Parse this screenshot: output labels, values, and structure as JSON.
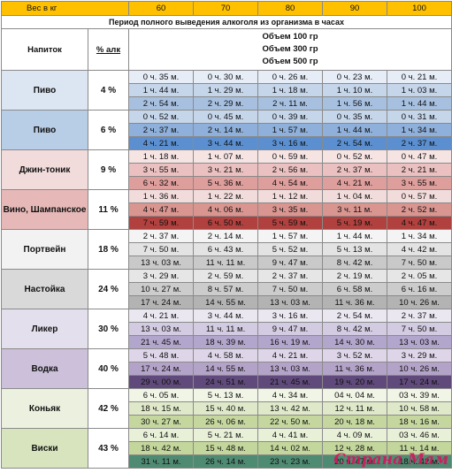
{
  "header": {
    "weight_label": "Вес в кг",
    "weights": [
      "60",
      "70",
      "80",
      "90",
      "100"
    ],
    "period_title": "Период полного выведения алкоголя из организма в часах",
    "drink_col": "Напиток",
    "pct_col": "% алк",
    "volumes": [
      "Объем 100 гр",
      "Объем 300 гр",
      "Объем 500 гр"
    ]
  },
  "drinks": [
    {
      "name": "Пиво",
      "pct": "4 %",
      "bg": "#dce6f2",
      "rows": [
        [
          "0 ч. 35 м.",
          "0 ч. 30 м.",
          "0 ч. 26 м.",
          "0 ч. 23 м.",
          "0 ч. 21 м."
        ],
        [
          "1 ч. 44 м.",
          "1 ч. 29 м.",
          "1 ч. 18 м.",
          "1 ч. 10 м.",
          "1 ч. 03 м."
        ],
        [
          "2 ч. 54 м.",
          "2 ч. 29 м.",
          "2 ч. 11 м.",
          "1 ч. 56 м.",
          "1 ч. 44 м."
        ]
      ],
      "rowbg": [
        "#e6edf7",
        "#c5d5ea",
        "#a7c0e0"
      ]
    },
    {
      "name": "Пиво",
      "pct": "6 %",
      "bg": "#b8cde6",
      "rows": [
        [
          "0 ч. 52 м.",
          "0 ч. 45 м.",
          "0 ч. 39 м.",
          "0 ч. 35 м.",
          "0 ч. 31 м."
        ],
        [
          "2 ч. 37 м.",
          "2 ч. 14 м.",
          "1 ч. 57 м.",
          "1 ч. 44 м.",
          "1 ч. 34 м."
        ],
        [
          "4 ч. 21 м.",
          "3 ч. 44 м.",
          "3 ч. 16 м.",
          "2 ч. 54 м.",
          "2 ч. 37 м."
        ]
      ],
      "rowbg": [
        "#c5d5ea",
        "#8eb0da",
        "#5b8fcf"
      ]
    },
    {
      "name": "Джин-тоник",
      "pct": "9 %",
      "bg": "#f2dcdb",
      "rows": [
        [
          "1 ч. 18 м.",
          "1 ч. 07 м.",
          "0 ч. 59 м.",
          "0 ч. 52 м.",
          "0 ч. 47 м."
        ],
        [
          "3 ч. 55 м.",
          "3 ч. 21 м.",
          "2 ч. 56 м.",
          "2 ч. 37 м.",
          "2 ч. 21 м."
        ],
        [
          "6 ч. 32 м.",
          "5 ч. 36 м.",
          "4 ч. 54 м.",
          "4 ч. 21 м.",
          "3 ч. 55 м."
        ]
      ],
      "rowbg": [
        "#f6e4e3",
        "#eac1c0",
        "#de9e9c"
      ]
    },
    {
      "name": "Вино, Шампанское",
      "pct": "11 %",
      "bg": "#e6b9b8",
      "rows": [
        [
          "1 ч. 36 м.",
          "1 ч. 22 м.",
          "1 ч. 12 м.",
          "1 ч. 04 м.",
          "0 ч. 57 м."
        ],
        [
          "4 ч. 47 м.",
          "4 ч. 06 м.",
          "3 ч. 35 м.",
          "3 ч. 11 м.",
          "2 ч. 52 м."
        ],
        [
          "7 ч. 59 м.",
          "6 ч. 50 м.",
          "5 ч. 59 м.",
          "5 ч. 19 м.",
          "4 ч. 47 м."
        ]
      ],
      "rowbg": [
        "#f2dcdb",
        "#d9958f",
        "#b0413e"
      ]
    },
    {
      "name": "Портвейн",
      "pct": "18 %",
      "bg": "#f2f2f2",
      "rows": [
        [
          "2 ч. 37 м.",
          "2 ч. 14 м.",
          "1 ч. 57 м.",
          "1 ч. 44 м.",
          "1 ч. 34 м."
        ],
        [
          "7 ч. 50 м.",
          "6 ч. 43 м.",
          "5 ч. 52 м.",
          "5 ч. 13 м.",
          "4 ч. 42 м."
        ],
        [
          "13 ч. 03 м.",
          "11 ч. 11 м.",
          "9 ч. 47 м.",
          "8 ч. 42 м.",
          "7 ч. 50 м."
        ]
      ],
      "rowbg": [
        "#f4f4f4",
        "#e3e3e3",
        "#c9c9c9"
      ]
    },
    {
      "name": "Настойка",
      "pct": "24 %",
      "bg": "#d9d9d9",
      "rows": [
        [
          "3 ч. 29 м.",
          "2 ч. 59 м.",
          "2 ч. 37 м.",
          "2 ч. 19 м.",
          "2 ч. 05 м."
        ],
        [
          "10 ч. 27 м.",
          "8 ч. 57 м.",
          "7 ч. 50 м.",
          "6 ч. 58 м.",
          "6 ч. 16 м."
        ],
        [
          "17 ч. 24 м.",
          "14 ч. 55 м.",
          "13 ч. 03 м.",
          "11 ч. 36 м.",
          "10 ч. 26 м."
        ]
      ],
      "rowbg": [
        "#e6e6e6",
        "#cccccc",
        "#b3b3b3"
      ]
    },
    {
      "name": "Ликер",
      "pct": "30 %",
      "bg": "#e4dfec",
      "rows": [
        [
          "4 ч. 21 м.",
          "3 ч. 44 м.",
          "3 ч. 16 м.",
          "2 ч. 54 м.",
          "2 ч. 37 м."
        ],
        [
          "13 ч. 03 м.",
          "11 ч. 11 м.",
          "9 ч. 47 м.",
          "8 ч. 42 м.",
          "7 ч. 50 м."
        ],
        [
          "21 ч. 45 м.",
          "18 ч. 39 м.",
          "16 ч. 19 м.",
          "14 ч. 30 м.",
          "13 ч. 03 м."
        ]
      ],
      "rowbg": [
        "#ebe7f1",
        "#d3cbe1",
        "#b3a6cc"
      ]
    },
    {
      "name": "Водка",
      "pct": "40 %",
      "bg": "#ccc0da",
      "rows": [
        [
          "5 ч. 48 м.",
          "4 ч. 58 м.",
          "4 ч. 21 м.",
          "3 ч. 52 м.",
          "3 ч. 29 м."
        ],
        [
          "17 ч. 24 м.",
          "14 ч. 55 м.",
          "13 ч. 03 м.",
          "11 ч. 36 м.",
          "10 ч. 26 м."
        ],
        [
          "29 ч. 00 м.",
          "24 ч. 51 м.",
          "21 ч. 45 м.",
          "19 ч. 20 м.",
          "17 ч. 24 м."
        ]
      ],
      "rowbg": [
        "#ded6e8",
        "#b4a3c9",
        "#604a7b"
      ]
    },
    {
      "name": "Коньяк",
      "pct": "42 %",
      "bg": "#ebf1de",
      "rows": [
        [
          "6 ч. 05 м.",
          "5 ч. 13 м.",
          "4 ч. 34 м.",
          "04 ч. 04 м.",
          "03 ч. 39 м."
        ],
        [
          "18 ч. 15 м.",
          "15 ч. 40 м.",
          "13 ч. 42 м.",
          "12 ч. 11 м.",
          "10 ч. 58 м."
        ],
        [
          "30 ч. 27 м.",
          "26 ч. 06 м.",
          "22 ч. 50 м.",
          "20 ч. 18 м.",
          "18 ч. 16 м."
        ]
      ],
      "rowbg": [
        "#f0f5e6",
        "#dfe9c9",
        "#c5d79e"
      ]
    },
    {
      "name": "Виски",
      "pct": "43 %",
      "bg": "#d7e4bd",
      "rows": [
        [
          "6 ч. 14 м.",
          "5 ч. 21 м.",
          "4 ч. 41 м.",
          "4 ч. 09 м.",
          "03 ч. 46 м."
        ],
        [
          "18 ч. 42 м.",
          "15 ч. 48 м.",
          "14 ч. 02 м.",
          "12 ч. 28 м.",
          "11 ч. 14 м."
        ],
        [
          "31 ч. 11 м.",
          "26 ч. 14 м.",
          "23 ч. 23 м.",
          "20 ч. 47 м.",
          "18 ч. 42 м."
        ]
      ],
      "rowbg": [
        "#e8f0d8",
        "#c3d69b",
        "#4f8a72"
      ]
    }
  ],
  "watermark": "Страна Мам"
}
